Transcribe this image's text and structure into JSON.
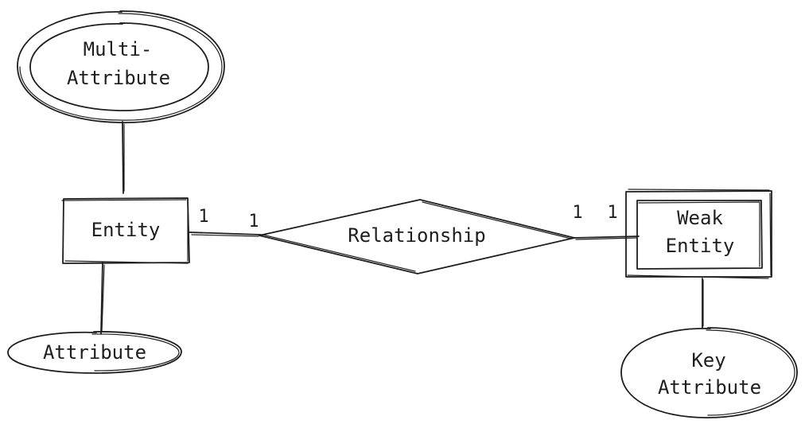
{
  "nodes": {
    "multi_attribute": {
      "line1": "Multi-",
      "line2": "Attribute"
    },
    "entity": {
      "label": "Entity"
    },
    "attribute": {
      "label": "Attribute"
    },
    "relationship": {
      "label": "Relationship"
    },
    "weak_entity": {
      "line1": "Weak",
      "line2": "Entity"
    },
    "key_attribute": {
      "line1": "Key",
      "line2": "Attribute"
    }
  },
  "cardinalities": {
    "entity_side": "1",
    "relationship_left": "1",
    "relationship_right": "1",
    "weak_entity_side": "1"
  },
  "style": {
    "stroke_color": "#1e1e1e",
    "background": "#ffffff"
  }
}
